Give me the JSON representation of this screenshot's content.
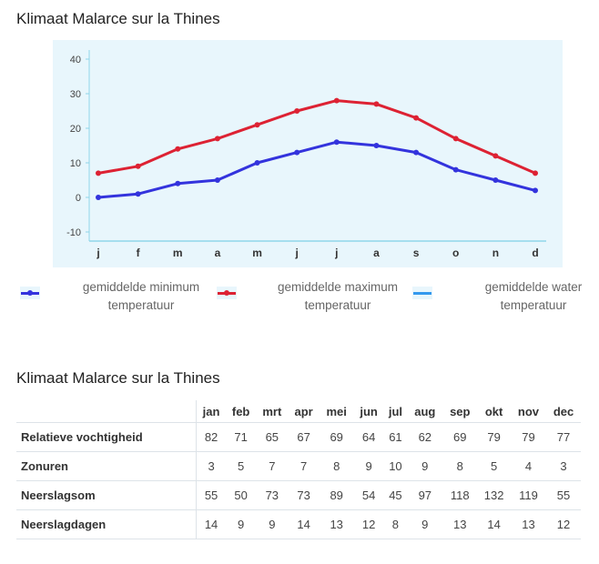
{
  "chart_title": "Klimaat Malarce sur la Thines",
  "table_title": "Klimaat Malarce sur la Thines",
  "colors": {
    "min": "#3333dd",
    "max": "#dd2233",
    "water": "#3399ee",
    "plot_bg": "#e8f6fc",
    "axis": "#8fd6ea"
  },
  "chart_data": {
    "type": "line",
    "categories": [
      "j",
      "f",
      "m",
      "a",
      "m",
      "j",
      "j",
      "a",
      "s",
      "o",
      "n",
      "d"
    ],
    "ylim": [
      -15,
      45
    ],
    "yticks": [
      40,
      30,
      20,
      10,
      0,
      -10
    ],
    "legend_position": "bottom",
    "series": [
      {
        "name": "gemiddelde minimum temperatuur",
        "values": [
          0,
          1,
          4,
          5,
          10,
          13,
          16,
          15,
          13,
          8,
          5,
          2
        ]
      },
      {
        "name": "gemiddelde maximum temperatuur",
        "values": [
          7,
          9,
          14,
          17,
          21,
          25,
          28,
          27,
          23,
          17,
          12,
          7
        ]
      }
    ]
  },
  "legend": [
    {
      "line1": "gemiddelde minimum",
      "line2": "temperatuur",
      "color": "#3333dd",
      "marker": true
    },
    {
      "line1": "gemiddelde maximum",
      "line2": "temperatuur",
      "color": "#dd2233",
      "marker": true
    },
    {
      "line1": "gemiddelde water",
      "line2": "temperatuur",
      "color": "#3399ee",
      "marker": false
    }
  ],
  "table": {
    "months": [
      "jan",
      "feb",
      "mrt",
      "apr",
      "mei",
      "jun",
      "jul",
      "aug",
      "sep",
      "okt",
      "nov",
      "dec"
    ],
    "rows": [
      {
        "label": "Relatieve vochtigheid",
        "values": [
          "82",
          "71",
          "65",
          "67",
          "69",
          "64",
          "61",
          "62",
          "69",
          "79",
          "79",
          "77"
        ]
      },
      {
        "label": "Zonuren",
        "values": [
          "3",
          "5",
          "7",
          "7",
          "8",
          "9",
          "10",
          "9",
          "8",
          "5",
          "4",
          "3"
        ]
      },
      {
        "label": "Neerslagsom",
        "values": [
          "55",
          "50",
          "73",
          "73",
          "89",
          "54",
          "45",
          "97",
          "118",
          "132",
          "119",
          "55"
        ]
      },
      {
        "label": "Neerslagdagen",
        "values": [
          "14",
          "9",
          "9",
          "14",
          "13",
          "12",
          "8",
          "9",
          "13",
          "14",
          "13",
          "12"
        ]
      }
    ]
  }
}
